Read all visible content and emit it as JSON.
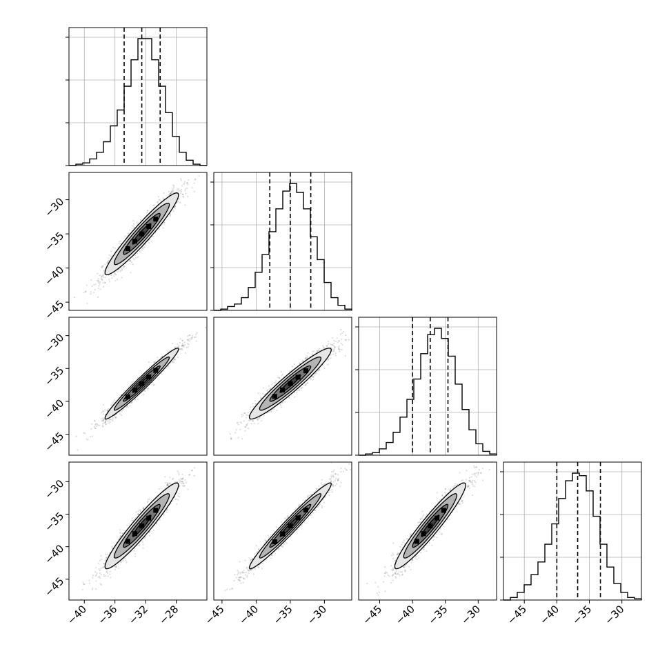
{
  "chart_data": {
    "type": "scatter",
    "subtype": "corner-plot",
    "title": "",
    "n_params": 4,
    "grid": true,
    "quantiles_shown": [
      0.16,
      0.5,
      0.84
    ],
    "params": [
      {
        "ticks": [
          -40,
          -36,
          -32,
          -28
        ],
        "range": [
          -42.0,
          -24.0
        ],
        "quantiles": [
          -34.8,
          -32.5,
          -30.1
        ],
        "hist": [
          0,
          1,
          2,
          5,
          10,
          18,
          30,
          42,
          60,
          80,
          96,
          96,
          80,
          60,
          40,
          22,
          10,
          4,
          1,
          0
        ]
      },
      {
        "ticks": [
          -45,
          -40,
          -35,
          -30
        ],
        "range": [
          -46.2,
          -26.0
        ],
        "quantiles": [
          -38.0,
          -35.0,
          -32.0
        ],
        "hist": [
          0,
          1,
          3,
          5,
          10,
          18,
          30,
          44,
          62,
          80,
          94,
          100,
          93,
          80,
          58,
          40,
          22,
          10,
          4,
          1
        ]
      },
      {
        "ticks": [
          -45,
          -40,
          -35,
          -30
        ],
        "range": [
          -48.2,
          -27.2
        ],
        "quantiles": [
          -40.0,
          -37.3,
          -34.6
        ],
        "hist": [
          0,
          1,
          2,
          5,
          10,
          18,
          30,
          44,
          60,
          80,
          95,
          100,
          92,
          78,
          56,
          36,
          20,
          9,
          3,
          1
        ]
      },
      {
        "ticks": [
          -45,
          -40,
          -35,
          -30
        ],
        "range": [
          -48.2,
          -27.0
        ],
        "quantiles": [
          -40.0,
          -36.8,
          -33.3
        ],
        "hist": [
          0,
          2,
          6,
          12,
          20,
          30,
          44,
          60,
          80,
          94,
          100,
          98,
          86,
          66,
          44,
          26,
          13,
          6,
          2,
          1
        ]
      }
    ],
    "correlations": [
      {
        "pair": [
          1,
          0
        ],
        "center": [
          -32.5,
          -35.0
        ],
        "sd": [
          2.4,
          3.0
        ],
        "rho": 0.95
      },
      {
        "pair": [
          2,
          0
        ],
        "center": [
          -32.5,
          -37.3
        ],
        "sd": [
          2.4,
          2.7
        ],
        "rho": 0.975
      },
      {
        "pair": [
          2,
          1
        ],
        "center": [
          -35.0,
          -37.3
        ],
        "sd": [
          3.0,
          2.7
        ],
        "rho": 0.95
      },
      {
        "pair": [
          3,
          0
        ],
        "center": [
          -32.5,
          -36.8
        ],
        "sd": [
          2.4,
          3.3
        ],
        "rho": 0.95
      },
      {
        "pair": [
          3,
          1
        ],
        "center": [
          -35.0,
          -36.8
        ],
        "sd": [
          3.0,
          3.3
        ],
        "rho": 0.975
      },
      {
        "pair": [
          3,
          2
        ],
        "center": [
          -37.3,
          -36.8
        ],
        "sd": [
          2.7,
          3.3
        ],
        "rho": 0.95
      }
    ],
    "contour_levels_sigma": [
      0.5,
      1.0,
      1.5,
      2.0
    ],
    "contour_fills": [
      "#444444",
      "#777777",
      "#b4b4b4",
      "#e6e6e6"
    ]
  }
}
